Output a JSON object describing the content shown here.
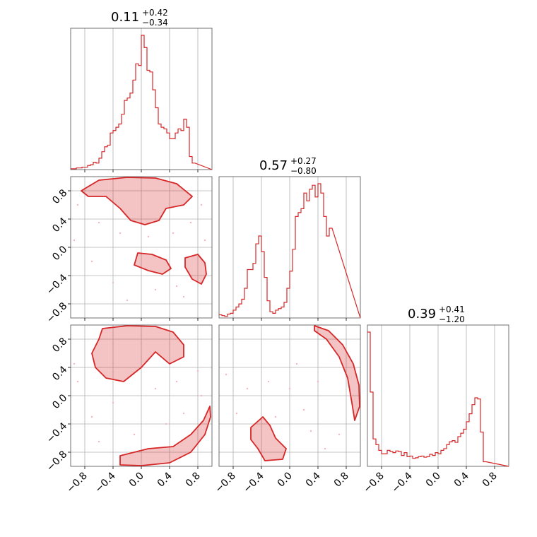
{
  "chart_data": {
    "type": "corner",
    "colors": {
      "line": "#d62728",
      "fill": "#f4b6ba",
      "grid": "#b0b0b0",
      "frame": "#4d4d4d"
    },
    "axis_range": [
      -1.0,
      1.0
    ],
    "tick_values": [
      -0.8,
      -0.4,
      0.0,
      0.4,
      0.8
    ],
    "tick_labels": [
      "−0.8",
      "−0.4",
      "0.0",
      "0.4",
      "0.8"
    ],
    "grid": true,
    "titles": [
      {
        "value": "0.11",
        "plus": "+0.42",
        "minus": "−0.34"
      },
      {
        "value": "0.57",
        "plus": "+0.27",
        "minus": "−0.80"
      },
      {
        "value": "0.39",
        "plus": "+0.41",
        "minus": "−1.20"
      }
    ],
    "histograms": [
      {
        "bin_edges_start": -1.0,
        "bin_width": 0.04,
        "counts": [
          1,
          1,
          2,
          2,
          3,
          3,
          5,
          6,
          9,
          8,
          14,
          22,
          28,
          30,
          45,
          48,
          52,
          56,
          68,
          85,
          88,
          94,
          110,
          130,
          128,
          165,
          150,
          122,
          120,
          98,
          76,
          56,
          52,
          50,
          45,
          38,
          38,
          45,
          50,
          48,
          62,
          52,
          16,
          8
        ]
      },
      {
        "bin_edges_start": -1.0,
        "bin_width": 0.04,
        "counts": [
          4,
          3,
          2,
          5,
          6,
          10,
          14,
          18,
          24,
          38,
          62,
          62,
          70,
          95,
          105,
          85,
          52,
          22,
          8,
          6,
          10,
          12,
          14,
          20,
          38,
          60,
          88,
          130,
          135,
          140,
          160,
          150,
          165,
          170,
          155,
          172,
          160,
          130,
          105,
          115
        ]
      },
      {
        "bin_edges_start": -1.0,
        "bin_width": 0.04,
        "counts": [
          235,
          130,
          48,
          38,
          28,
          22,
          22,
          28,
          26,
          24,
          27,
          26,
          19,
          24,
          17,
          18,
          14,
          15,
          17,
          18,
          16,
          17,
          21,
          19,
          24,
          22,
          28,
          31,
          38,
          43,
          45,
          42,
          52,
          58,
          65,
          78,
          92,
          108,
          120,
          118,
          60,
          8
        ]
      }
    ],
    "contours": [
      {
        "x_index": 0,
        "y_index": 1,
        "regions": [
          [
            [
              -0.85,
              0.8
            ],
            [
              -0.6,
              0.95
            ],
            [
              -0.2,
              0.99
            ],
            [
              0.2,
              0.98
            ],
            [
              0.5,
              0.9
            ],
            [
              0.72,
              0.72
            ],
            [
              0.6,
              0.6
            ],
            [
              0.35,
              0.55
            ],
            [
              0.25,
              0.38
            ],
            [
              0.05,
              0.32
            ],
            [
              -0.15,
              0.38
            ],
            [
              -0.3,
              0.55
            ],
            [
              -0.5,
              0.72
            ],
            [
              -0.75,
              0.72
            ]
          ],
          [
            [
              -0.05,
              -0.08
            ],
            [
              0.15,
              -0.1
            ],
            [
              0.35,
              -0.18
            ],
            [
              0.42,
              -0.3
            ],
            [
              0.3,
              -0.38
            ],
            [
              0.1,
              -0.33
            ],
            [
              -0.1,
              -0.25
            ]
          ],
          [
            [
              0.62,
              -0.15
            ],
            [
              0.8,
              -0.1
            ],
            [
              0.9,
              -0.22
            ],
            [
              0.92,
              -0.38
            ],
            [
              0.85,
              -0.52
            ],
            [
              0.72,
              -0.45
            ],
            [
              0.62,
              -0.28
            ]
          ]
        ],
        "points": [
          [
            -0.9,
            0.6
          ],
          [
            -0.6,
            0.35
          ],
          [
            -0.3,
            0.2
          ],
          [
            0.1,
            0.15
          ],
          [
            0.45,
            0.2
          ],
          [
            0.7,
            0.35
          ],
          [
            0.9,
            0.1
          ],
          [
            0.5,
            -0.55
          ],
          [
            -0.4,
            -0.5
          ],
          [
            -0.7,
            -0.2
          ],
          [
            0.2,
            -0.6
          ],
          [
            0.85,
            0.6
          ],
          [
            -0.2,
            -0.75
          ],
          [
            0.6,
            -0.7
          ],
          [
            -0.95,
            0.1
          ]
        ]
      },
      {
        "x_index": 0,
        "y_index": 2,
        "regions": [
          [
            [
              -0.55,
              0.95
            ],
            [
              -0.2,
              0.99
            ],
            [
              0.2,
              0.98
            ],
            [
              0.45,
              0.9
            ],
            [
              0.6,
              0.72
            ],
            [
              0.6,
              0.55
            ],
            [
              0.4,
              0.45
            ],
            [
              0.2,
              0.62
            ],
            [
              0.0,
              0.4
            ],
            [
              -0.25,
              0.2
            ],
            [
              -0.5,
              0.25
            ],
            [
              -0.65,
              0.4
            ],
            [
              -0.7,
              0.6
            ],
            [
              -0.6,
              0.8
            ]
          ],
          [
            [
              -0.3,
              -0.85
            ],
            [
              0.1,
              -0.75
            ],
            [
              0.45,
              -0.72
            ],
            [
              0.7,
              -0.55
            ],
            [
              0.88,
              -0.35
            ],
            [
              0.97,
              -0.15
            ],
            [
              0.98,
              -0.3
            ],
            [
              0.9,
              -0.55
            ],
            [
              0.7,
              -0.8
            ],
            [
              0.4,
              -0.95
            ],
            [
              0.0,
              -0.99
            ],
            [
              -0.3,
              -0.98
            ]
          ]
        ],
        "points": [
          [
            -0.9,
            0.2
          ],
          [
            -0.7,
            -0.3
          ],
          [
            -0.4,
            -0.1
          ],
          [
            0.2,
            0.1
          ],
          [
            0.5,
            0.2
          ],
          [
            0.8,
            0.35
          ],
          [
            0.35,
            -0.4
          ],
          [
            -0.1,
            -0.55
          ],
          [
            0.6,
            -0.25
          ],
          [
            -0.6,
            -0.65
          ],
          [
            0.85,
            0.0
          ],
          [
            -0.95,
            0.45
          ]
        ]
      },
      {
        "x_index": 1,
        "y_index": 2,
        "regions": [
          [
            [
              0.35,
              0.99
            ],
            [
              0.55,
              0.92
            ],
            [
              0.75,
              0.72
            ],
            [
              0.9,
              0.45
            ],
            [
              0.98,
              0.15
            ],
            [
              0.99,
              -0.15
            ],
            [
              0.92,
              -0.35
            ],
            [
              0.88,
              -0.1
            ],
            [
              0.82,
              0.25
            ],
            [
              0.7,
              0.55
            ],
            [
              0.52,
              0.8
            ],
            [
              0.35,
              0.92
            ]
          ],
          [
            [
              -0.55,
              -0.45
            ],
            [
              -0.38,
              -0.3
            ],
            [
              -0.28,
              -0.42
            ],
            [
              -0.2,
              -0.6
            ],
            [
              -0.05,
              -0.75
            ],
            [
              -0.1,
              -0.9
            ],
            [
              -0.35,
              -0.92
            ],
            [
              -0.45,
              -0.75
            ],
            [
              -0.55,
              -0.62
            ]
          ]
        ],
        "points": [
          [
            -0.9,
            0.3
          ],
          [
            -0.6,
            0.1
          ],
          [
            -0.3,
            0.2
          ],
          [
            0.0,
            0.1
          ],
          [
            0.2,
            -0.2
          ],
          [
            0.3,
            -0.5
          ],
          [
            -0.2,
            -0.3
          ],
          [
            0.1,
            0.45
          ],
          [
            0.5,
            -0.75
          ],
          [
            0.7,
            -0.55
          ],
          [
            -0.75,
            -0.25
          ],
          [
            0.4,
            0.2
          ]
        ]
      }
    ]
  }
}
